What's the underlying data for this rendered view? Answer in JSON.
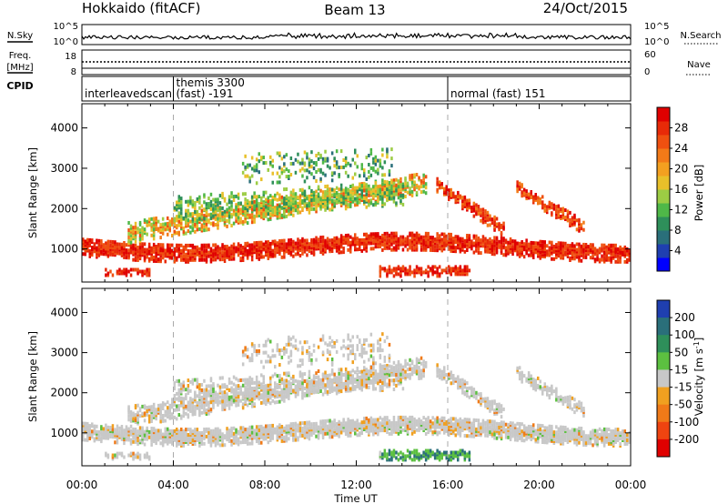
{
  "header": {
    "station": "Hokkaido (fitACF)",
    "beam": "Beam 13",
    "date": "24/Oct/2015"
  },
  "left_labels": {
    "nsky": "N.Sky",
    "freq_line1": "Freq.",
    "freq_line2": "[MHz]",
    "cpid": "CPID",
    "nsky_ticks": [
      "10^5",
      "10^0"
    ],
    "freq_ticks": [
      "18",
      "8"
    ]
  },
  "right_labels": {
    "nsearch": "N.Search",
    "nave": "Nave",
    "nsearch_ticks": [
      "10^5",
      "10^0"
    ],
    "nave_ticks": [
      "60",
      "0"
    ]
  },
  "cpid_segments": [
    {
      "start_hour": 0.0,
      "end_hour": 4.0,
      "line1": "",
      "line2": "interleavedscan"
    },
    {
      "start_hour": 4.0,
      "end_hour": 16.0,
      "line1": "themis 3300",
      "line2": "(fast) -191"
    },
    {
      "start_hour": 16.0,
      "end_hour": 24.0,
      "line1": "",
      "line2": "normal (fast) 151"
    }
  ],
  "chart_data": [
    {
      "type": "heatmap",
      "name": "Power",
      "xlabel": "",
      "ylabel": "Slant Range [km]",
      "x_range_hours": [
        0,
        24
      ],
      "ylim": [
        180,
        4600
      ],
      "y_ticks": [
        1000,
        2000,
        3000,
        4000
      ],
      "colorbar_label": "Power [dB]",
      "colorbar_range": [
        0,
        32
      ],
      "colorbar_ticks": [
        4,
        8,
        12,
        16,
        20,
        24,
        28
      ],
      "colorbar_colors": [
        "#0000ff",
        "#1f3fb0",
        "#2a6f7a",
        "#2e8f5a",
        "#4fb848",
        "#9ccc44",
        "#e8c02a",
        "#f3a020",
        "#f27a18",
        "#ef5010",
        "#e82a08",
        "#e00000"
      ]
    },
    {
      "type": "heatmap",
      "name": "Velocity",
      "xlabel": "Time UT",
      "ylabel": "Slant Range [km]",
      "x_range_hours": [
        0,
        24
      ],
      "ylim": [
        180,
        4600
      ],
      "y_ticks": [
        1000,
        2000,
        3000,
        4000
      ],
      "x_ticks": [
        "00:00",
        "04:00",
        "08:00",
        "12:00",
        "16:00",
        "20:00",
        "00:00"
      ],
      "colorbar_label": "Velocity [m s^-1]",
      "colorbar_ticks": [
        "200",
        "100",
        "50",
        "15",
        "-15",
        "-50",
        "-100",
        "-200"
      ],
      "colorbar_colors": [
        "#1f3fb0",
        "#2a6f7a",
        "#2e8f5a",
        "#5cc040",
        "#c8c8c8",
        "#f0a020",
        "#f07a18",
        "#ef4410",
        "#e00000"
      ]
    }
  ]
}
